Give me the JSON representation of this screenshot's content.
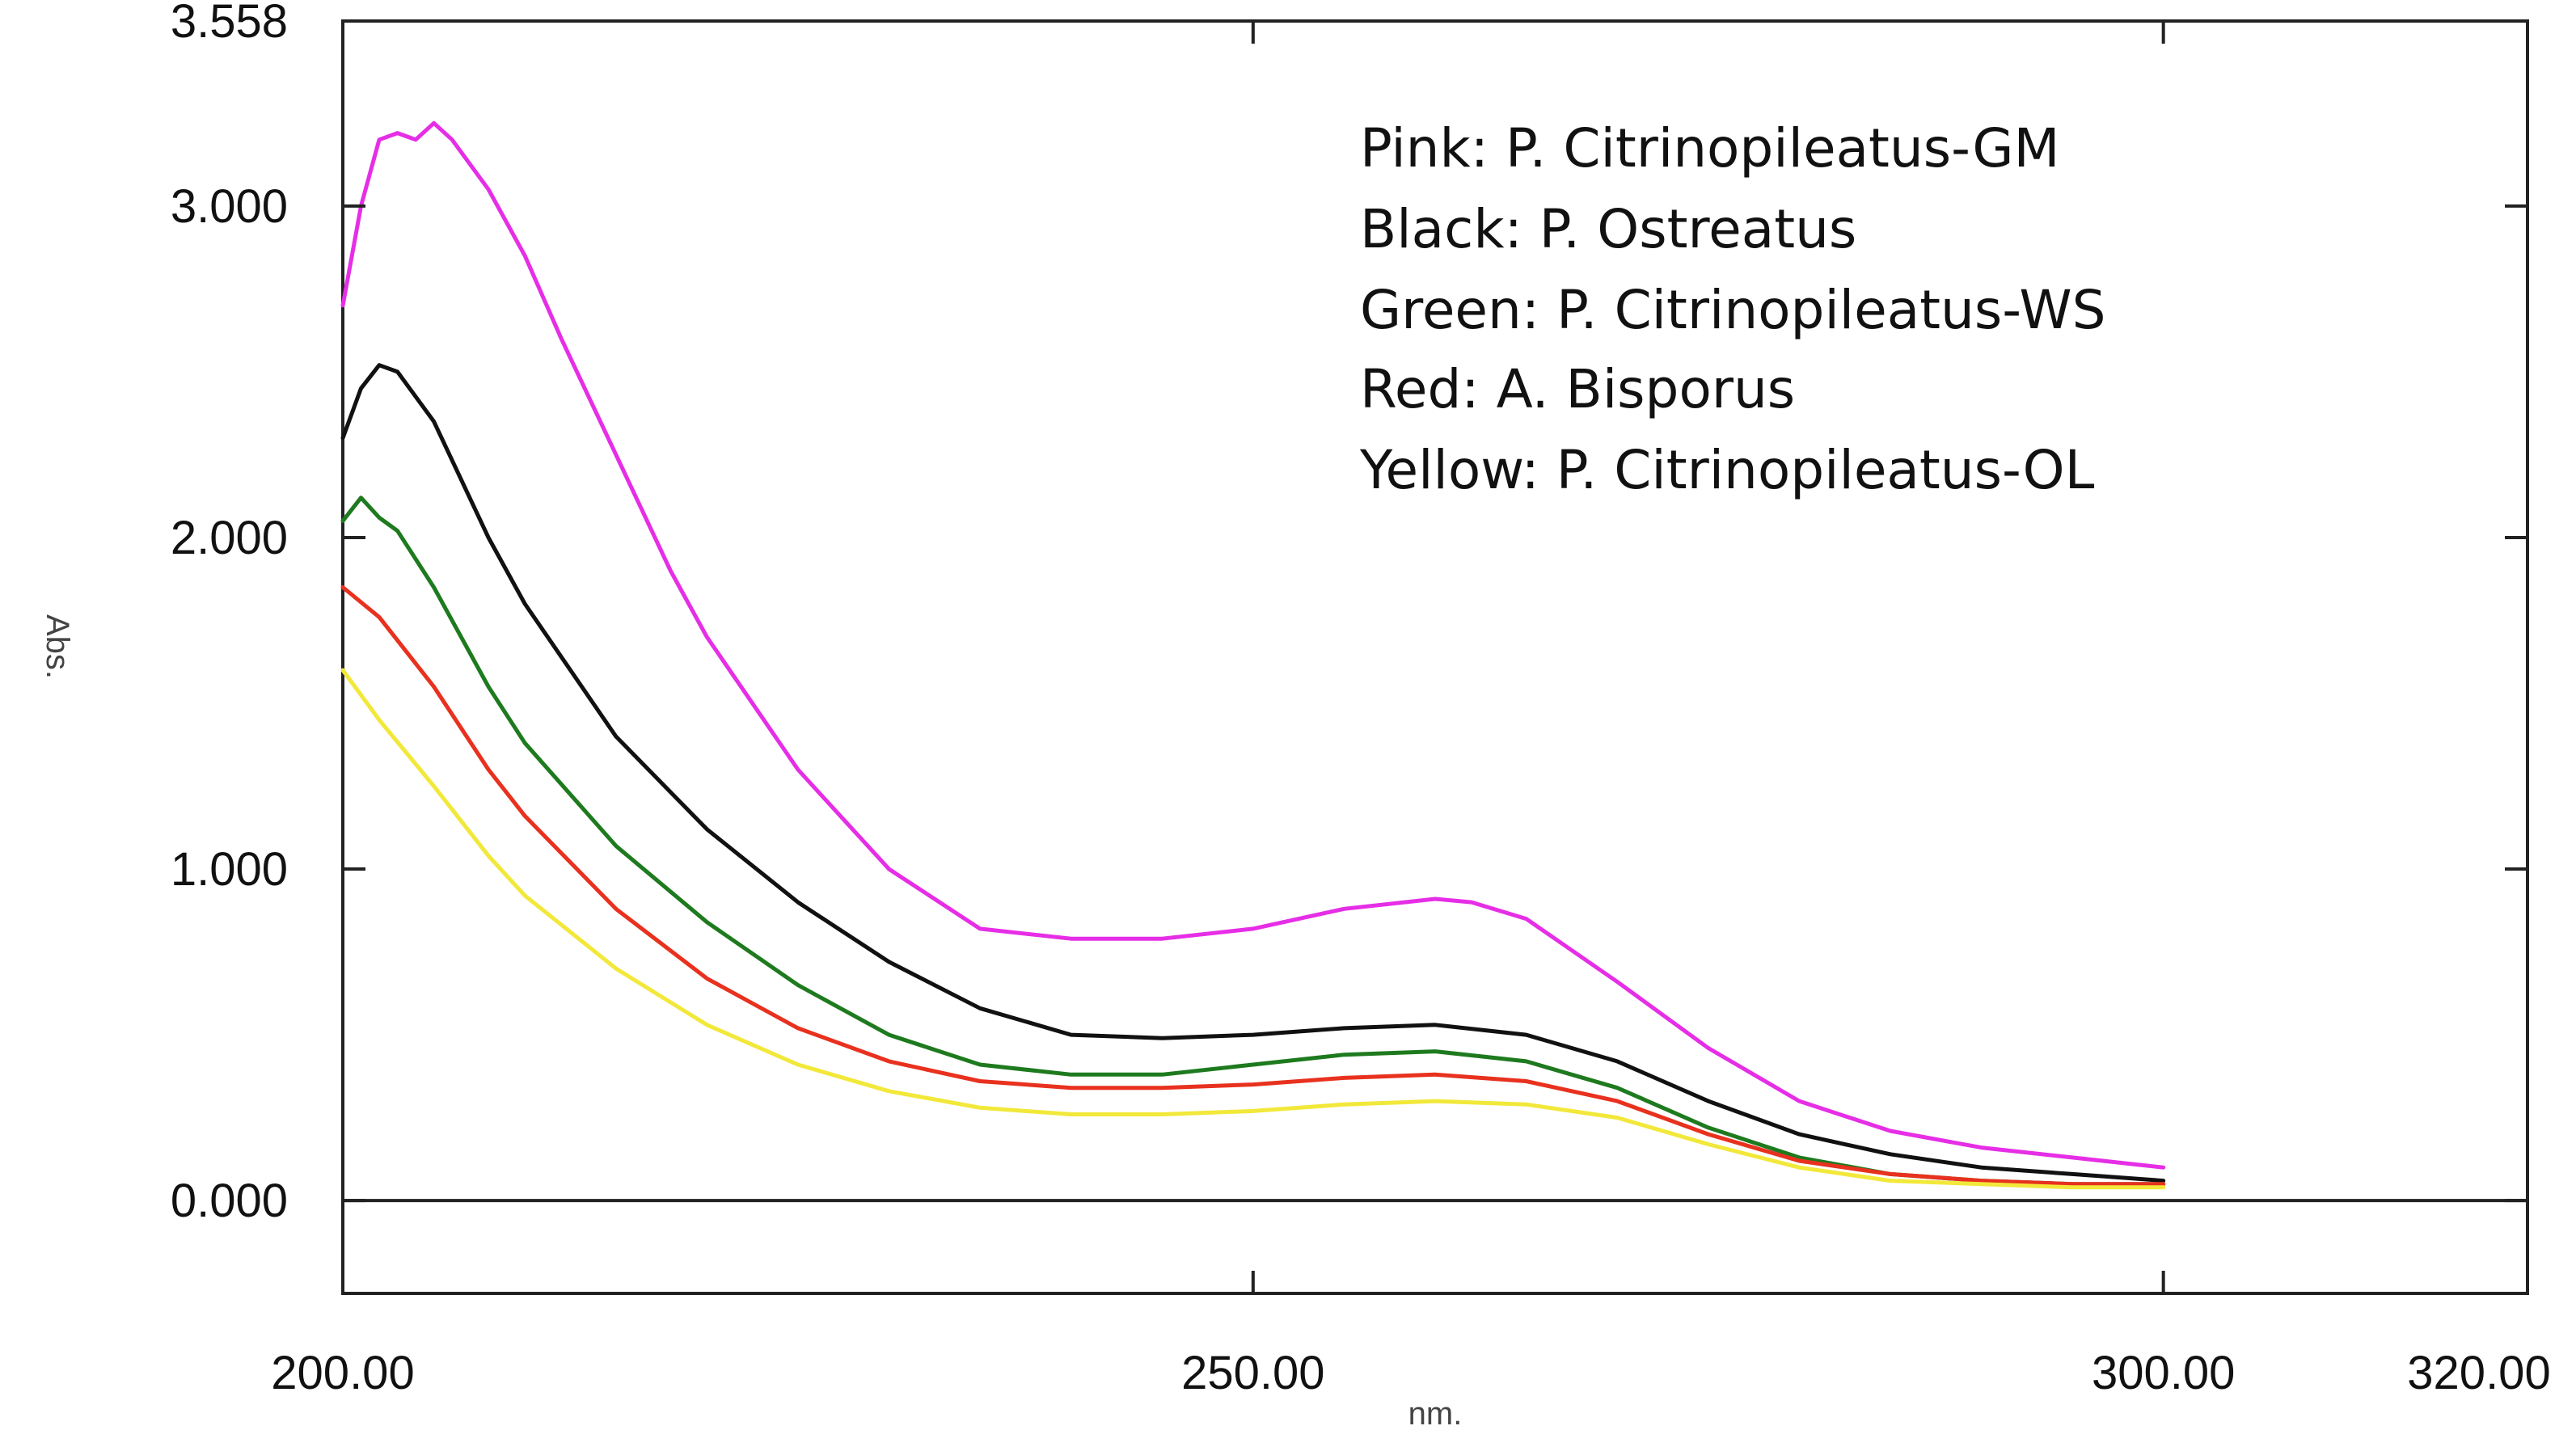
{
  "chart_data": {
    "type": "line",
    "xlabel": "nm.",
    "ylabel": "Abs.",
    "xlim": [
      200,
      320
    ],
    "ylim": [
      -0.28,
      3.558
    ],
    "x_ticks": [
      {
        "value": 200,
        "label": "200.00"
      },
      {
        "value": 250,
        "label": "250.00"
      },
      {
        "value": 300,
        "label": "300.00"
      },
      {
        "value": 320,
        "label": "320.00"
      }
    ],
    "y_ticks": [
      {
        "value": 0,
        "label": "0.000"
      },
      {
        "value": 1,
        "label": "1.000"
      },
      {
        "value": 2,
        "label": "2.000"
      },
      {
        "value": 3,
        "label": "3.000"
      },
      {
        "value": 3.558,
        "label": "3.558"
      }
    ],
    "legend_placement": "top-right",
    "legend": [
      "Pink: P. Citrinopileatus-GM",
      "Black: P. Ostreatus",
      "Green: P. Citrinopileatus-WS",
      "Red: A. Bisporus",
      "Yellow: P. Citrinopileatus-OL"
    ],
    "zero_line": true,
    "series": [
      {
        "color": "#e62ee6",
        "x": [
          200,
          201,
          202,
          203,
          204,
          205,
          206,
          208,
          210,
          212,
          215,
          218,
          220,
          225,
          230,
          235,
          240,
          245,
          250,
          255,
          260,
          262,
          265,
          270,
          275,
          280,
          285,
          290,
          295,
          300
        ],
        "y": [
          2.7,
          3.0,
          3.2,
          3.22,
          3.2,
          3.25,
          3.2,
          3.05,
          2.85,
          2.6,
          2.25,
          1.9,
          1.7,
          1.3,
          1.0,
          0.82,
          0.79,
          0.79,
          0.82,
          0.88,
          0.91,
          0.9,
          0.85,
          0.66,
          0.46,
          0.3,
          0.21,
          0.16,
          0.13,
          0.1
        ]
      },
      {
        "color": "#111111",
        "x": [
          200,
          201,
          202,
          203,
          205,
          208,
          210,
          215,
          220,
          225,
          230,
          235,
          240,
          245,
          250,
          255,
          260,
          265,
          270,
          275,
          280,
          285,
          290,
          295,
          300
        ],
        "y": [
          2.3,
          2.45,
          2.52,
          2.5,
          2.35,
          2.0,
          1.8,
          1.4,
          1.12,
          0.9,
          0.72,
          0.58,
          0.5,
          0.49,
          0.5,
          0.52,
          0.53,
          0.5,
          0.42,
          0.3,
          0.2,
          0.14,
          0.1,
          0.08,
          0.06
        ]
      },
      {
        "color": "#1e7a1e",
        "x": [
          200,
          201,
          202,
          203,
          205,
          208,
          210,
          215,
          220,
          225,
          230,
          235,
          240,
          245,
          250,
          255,
          260,
          265,
          270,
          275,
          280,
          285,
          290,
          295,
          300
        ],
        "y": [
          2.05,
          2.12,
          2.06,
          2.02,
          1.85,
          1.55,
          1.38,
          1.07,
          0.84,
          0.65,
          0.5,
          0.41,
          0.38,
          0.38,
          0.41,
          0.44,
          0.45,
          0.42,
          0.34,
          0.22,
          0.13,
          0.08,
          0.06,
          0.05,
          0.05
        ]
      },
      {
        "color": "#e8311e",
        "x": [
          200,
          202,
          205,
          208,
          210,
          215,
          220,
          225,
          230,
          235,
          240,
          245,
          250,
          255,
          260,
          265,
          270,
          275,
          280,
          285,
          290,
          295,
          300
        ],
        "y": [
          1.85,
          1.76,
          1.55,
          1.3,
          1.16,
          0.88,
          0.67,
          0.52,
          0.42,
          0.36,
          0.34,
          0.34,
          0.35,
          0.37,
          0.38,
          0.36,
          0.3,
          0.2,
          0.12,
          0.08,
          0.06,
          0.05,
          0.05
        ]
      },
      {
        "color": "#f2e83a",
        "x": [
          200,
          202,
          205,
          208,
          210,
          215,
          220,
          225,
          230,
          235,
          240,
          245,
          250,
          255,
          260,
          265,
          270,
          275,
          280,
          285,
          290,
          295,
          300
        ],
        "y": [
          1.6,
          1.45,
          1.25,
          1.04,
          0.92,
          0.7,
          0.53,
          0.41,
          0.33,
          0.28,
          0.26,
          0.26,
          0.27,
          0.29,
          0.3,
          0.29,
          0.25,
          0.17,
          0.1,
          0.06,
          0.05,
          0.04,
          0.04
        ]
      }
    ]
  }
}
